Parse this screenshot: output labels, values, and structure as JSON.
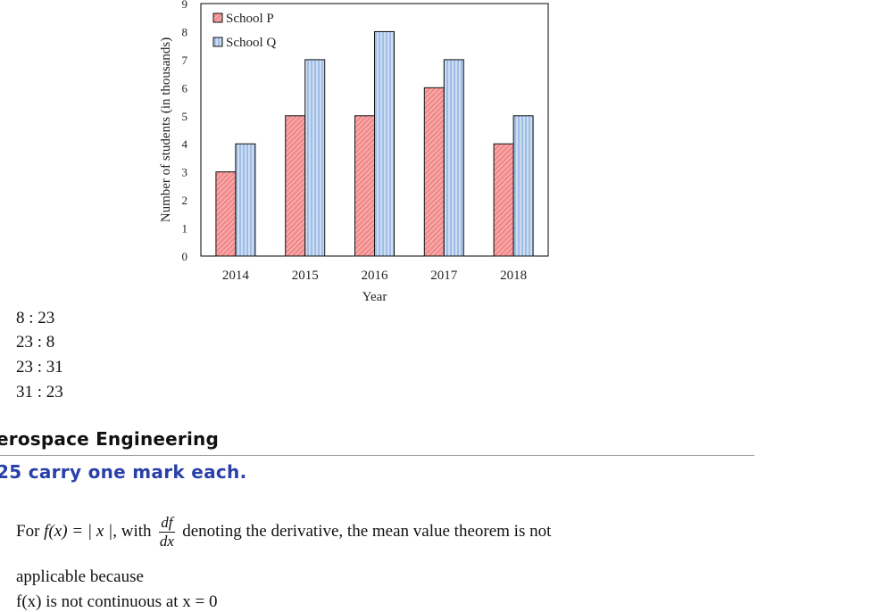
{
  "chart_data": {
    "type": "bar",
    "categories": [
      "2014",
      "2015",
      "2016",
      "2017",
      "2018"
    ],
    "series": [
      {
        "name": "School P",
        "values": [
          3,
          5,
          5,
          6,
          4
        ],
        "color": "#f08a8a"
      },
      {
        "name": "School Q",
        "values": [
          4,
          7,
          8,
          7,
          5
        ],
        "color": "#a9c3e8"
      }
    ],
    "xlabel": "Year",
    "ylabel": "Number of students (in thousands)",
    "ylim": [
      0,
      9
    ],
    "yticks": [
      "0",
      "1",
      "2",
      "3",
      "4",
      "5",
      "6",
      "7",
      "8",
      "9"
    ],
    "legend_position": "top-left",
    "grid": false
  },
  "options": [
    "8 : 23",
    "23 : 8",
    "23 : 31",
    "31 : 23"
  ],
  "section": {
    "title": "erospace Engineering",
    "mark_note": "25 carry one mark each."
  },
  "question": {
    "lead": "For",
    "function": "f(x) = | x |",
    "with": ", with",
    "deriv_num": "df",
    "deriv_den": "dx",
    "tail": "denoting the derivative, the mean value theorem is not",
    "continuation": "applicable because",
    "option_a": "f(x) is not continuous at x = 0"
  }
}
